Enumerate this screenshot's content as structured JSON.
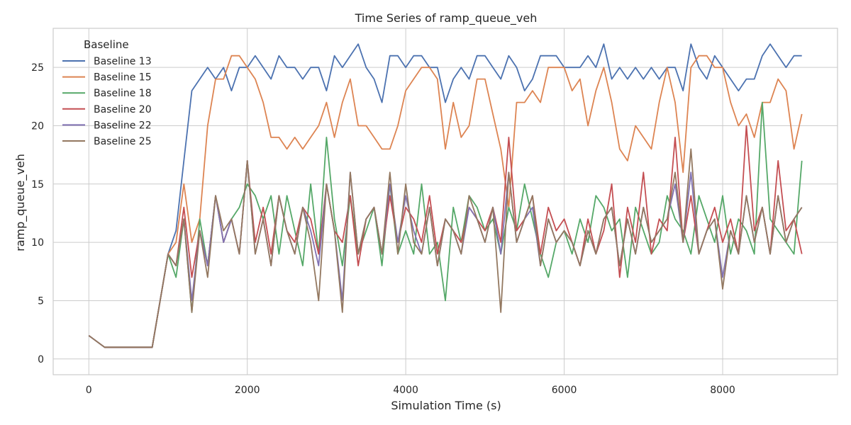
{
  "chart_data": {
    "type": "line",
    "title": "Time Series of ramp_queue_veh",
    "xlabel": "Simulation Time (s)",
    "ylabel": "ramp_queue_veh",
    "xlim": [
      -450,
      9450
    ],
    "ylim": [
      -1.35,
      28.35
    ],
    "xticks": [
      0,
      2000,
      4000,
      6000,
      8000
    ],
    "yticks": [
      0,
      5,
      10,
      15,
      20,
      25
    ],
    "grid": true,
    "legend": {
      "title": "Baseline",
      "position": "top-left"
    },
    "series": [
      {
        "name": "Baseline 13",
        "color": "#4c72b0",
        "x": [
          0,
          200,
          400,
          600,
          800,
          1000,
          1100,
          1200,
          1300,
          1400,
          1500,
          1600,
          1700,
          1800,
          1900,
          2000,
          2100,
          2200,
          2300,
          2400,
          2500,
          2600,
          2700,
          2800,
          2900,
          3000,
          3100,
          3200,
          3300,
          3400,
          3500,
          3600,
          3700,
          3800,
          3900,
          4000,
          4100,
          4200,
          4300,
          4400,
          4500,
          4600,
          4700,
          4800,
          4900,
          5000,
          5100,
          5200,
          5300,
          5400,
          5500,
          5600,
          5700,
          5800,
          5900,
          6000,
          6100,
          6200,
          6300,
          6400,
          6500,
          6600,
          6700,
          6800,
          6900,
          7000,
          7100,
          7200,
          7300,
          7400,
          7500,
          7600,
          7700,
          7800,
          7900,
          8000,
          8100,
          8200,
          8300,
          8400,
          8500,
          8600,
          8700,
          8800,
          8900,
          9000
        ],
        "y": [
          2,
          1,
          1,
          1,
          1,
          9,
          11,
          17,
          23,
          24,
          25,
          24,
          25,
          23,
          25,
          25,
          26,
          25,
          24,
          26,
          25,
          25,
          24,
          25,
          25,
          23,
          26,
          25,
          26,
          27,
          25,
          24,
          22,
          26,
          26,
          25,
          26,
          26,
          25,
          25,
          22,
          24,
          25,
          24,
          26,
          26,
          25,
          24,
          26,
          25,
          23,
          24,
          26,
          26,
          26,
          25,
          25,
          25,
          26,
          25,
          27,
          24,
          25,
          24,
          25,
          24,
          25,
          24,
          25,
          25,
          23,
          27,
          25,
          24,
          26,
          25,
          24,
          23,
          24,
          24,
          26,
          27,
          26,
          25,
          26,
          26
        ]
      },
      {
        "name": "Baseline 15",
        "color": "#dd8452",
        "x": [
          0,
          200,
          400,
          600,
          800,
          1000,
          1100,
          1200,
          1300,
          1400,
          1500,
          1600,
          1700,
          1800,
          1900,
          2000,
          2100,
          2200,
          2300,
          2400,
          2500,
          2600,
          2700,
          2800,
          2900,
          3000,
          3100,
          3200,
          3300,
          3400,
          3500,
          3600,
          3700,
          3800,
          3900,
          4000,
          4100,
          4200,
          4300,
          4400,
          4500,
          4600,
          4700,
          4800,
          4900,
          5000,
          5100,
          5200,
          5300,
          5400,
          5500,
          5600,
          5700,
          5800,
          5900,
          6000,
          6100,
          6200,
          6300,
          6400,
          6500,
          6600,
          6700,
          6800,
          6900,
          7000,
          7100,
          7200,
          7300,
          7400,
          7500,
          7600,
          7700,
          7800,
          7900,
          8000,
          8100,
          8200,
          8300,
          8400,
          8500,
          8600,
          8700,
          8800,
          8900,
          9000
        ],
        "y": [
          2,
          1,
          1,
          1,
          1,
          9,
          10,
          15,
          10,
          12,
          20,
          24,
          24,
          26,
          26,
          25,
          24,
          22,
          19,
          19,
          18,
          19,
          18,
          19,
          20,
          22,
          19,
          22,
          24,
          20,
          20,
          19,
          18,
          18,
          20,
          23,
          24,
          25,
          25,
          24,
          18,
          22,
          19,
          20,
          24,
          24,
          21,
          18,
          13,
          22,
          22,
          23,
          22,
          25,
          25,
          25,
          23,
          24,
          20,
          23,
          25,
          22,
          18,
          17,
          20,
          19,
          18,
          22,
          25,
          22,
          16,
          25,
          26,
          26,
          25,
          25,
          22,
          20,
          21,
          19,
          22,
          22,
          24,
          23,
          18,
          21
        ]
      },
      {
        "name": "Baseline 18",
        "color": "#55a868",
        "x": [
          0,
          200,
          400,
          600,
          800,
          1000,
          1100,
          1200,
          1300,
          1400,
          1500,
          1600,
          1700,
          1800,
          1900,
          2000,
          2100,
          2200,
          2300,
          2400,
          2500,
          2600,
          2700,
          2800,
          2900,
          3000,
          3100,
          3200,
          3300,
          3400,
          3500,
          3600,
          3700,
          3800,
          3900,
          4000,
          4100,
          4200,
          4300,
          4400,
          4500,
          4600,
          4700,
          4800,
          4900,
          5000,
          5100,
          5200,
          5300,
          5400,
          5500,
          5600,
          5700,
          5800,
          5900,
          6000,
          6100,
          6200,
          6300,
          6400,
          6500,
          6600,
          6700,
          6800,
          6900,
          7000,
          7100,
          7200,
          7300,
          7400,
          7500,
          7600,
          7700,
          7800,
          7900,
          8000,
          8100,
          8200,
          8300,
          8400,
          8500,
          8600,
          8700,
          8800,
          8900,
          9000
        ],
        "y": [
          2,
          1,
          1,
          1,
          1,
          9,
          7,
          12,
          4,
          12,
          8,
          14,
          10,
          12,
          13,
          15,
          14,
          12,
          14,
          9,
          14,
          11,
          8,
          15,
          9,
          19,
          12,
          8,
          14,
          9,
          11,
          13,
          8,
          15,
          9,
          11,
          9,
          15,
          9,
          10,
          5,
          13,
          10,
          14,
          13,
          11,
          12,
          9,
          13,
          11,
          15,
          12,
          9,
          7,
          10,
          11,
          9,
          12,
          10,
          14,
          13,
          11,
          12,
          7,
          13,
          11,
          9,
          10,
          14,
          12,
          11,
          9,
          14,
          12,
          10,
          14,
          9,
          12,
          11,
          9,
          22,
          12,
          11,
          10,
          9,
          17
        ]
      },
      {
        "name": "Baseline 20",
        "color": "#c44e52",
        "x": [
          0,
          200,
          400,
          600,
          800,
          1000,
          1100,
          1200,
          1300,
          1400,
          1500,
          1600,
          1700,
          1800,
          1900,
          2000,
          2100,
          2200,
          2300,
          2400,
          2500,
          2600,
          2700,
          2800,
          2900,
          3000,
          3100,
          3200,
          3300,
          3400,
          3500,
          3600,
          3700,
          3800,
          3900,
          4000,
          4100,
          4200,
          4300,
          4400,
          4500,
          4600,
          4700,
          4800,
          4900,
          5000,
          5100,
          5200,
          5300,
          5400,
          5500,
          5600,
          5700,
          5800,
          5900,
          6000,
          6100,
          6200,
          6300,
          6400,
          6500,
          6600,
          6700,
          6800,
          6900,
          7000,
          7100,
          7200,
          7300,
          7400,
          7500,
          7600,
          7700,
          7800,
          7900,
          8000,
          8100,
          8200,
          8300,
          8400,
          8500,
          8600,
          8700,
          8800,
          8900,
          9000
        ],
        "y": [
          2,
          1,
          1,
          1,
          1,
          9,
          8,
          13,
          7,
          11,
          8,
          14,
          10,
          12,
          9,
          17,
          10,
          13,
          9,
          14,
          11,
          10,
          13,
          12,
          9,
          15,
          11,
          10,
          14,
          8,
          12,
          13,
          9,
          14,
          10,
          13,
          12,
          10,
          14,
          9,
          12,
          11,
          10,
          13,
          12,
          11,
          13,
          10,
          19,
          11,
          12,
          14,
          9,
          13,
          11,
          12,
          10,
          8,
          12,
          9,
          11,
          15,
          7,
          13,
          10,
          16,
          9,
          12,
          11,
          19,
          10,
          14,
          9,
          11,
          13,
          10,
          12,
          9,
          20,
          11,
          13,
          9,
          17,
          11,
          12,
          9
        ]
      },
      {
        "name": "Baseline 22",
        "color": "#8172b3",
        "x": [
          0,
          200,
          400,
          600,
          800,
          1000,
          1100,
          1200,
          1300,
          1400,
          1500,
          1600,
          1700,
          1800,
          1900,
          2000,
          2100,
          2200,
          2300,
          2400,
          2500,
          2600,
          2700,
          2800,
          2900,
          3000,
          3100,
          3200,
          3300,
          3400,
          3500,
          3600,
          3700,
          3800,
          3900,
          4000,
          4100,
          4200,
          4300,
          4400,
          4500,
          4600,
          4700,
          4800,
          4900,
          5000,
          5100,
          5200,
          5300,
          5400,
          5500,
          5600,
          5700,
          5800,
          5900,
          6000,
          6100,
          6200,
          6300,
          6400,
          6500,
          6600,
          6700,
          6800,
          6900,
          7000,
          7100,
          7200,
          7300,
          7400,
          7500,
          7600,
          7700,
          7800,
          7900,
          8000,
          8100,
          8200,
          8300,
          8400,
          8500,
          8600,
          8700,
          8800,
          8900,
          9000
        ],
        "y": [
          2,
          1,
          1,
          1,
          1,
          9,
          8,
          12,
          5,
          11,
          8,
          14,
          10,
          12,
          9,
          17,
          9,
          12,
          8,
          14,
          11,
          9,
          13,
          11,
          8,
          15,
          11,
          5,
          16,
          9,
          12,
          13,
          9,
          15,
          10,
          14,
          11,
          9,
          13,
          8,
          12,
          11,
          9,
          13,
          12,
          10,
          13,
          9,
          16,
          10,
          12,
          13,
          8,
          12,
          10,
          11,
          10,
          8,
          11,
          9,
          12,
          13,
          8,
          12,
          9,
          13,
          10,
          11,
          12,
          15,
          10,
          16,
          9,
          11,
          12,
          7,
          11,
          9,
          14,
          10,
          13,
          9,
          14,
          10,
          12,
          13
        ]
      },
      {
        "name": "Baseline 25",
        "color": "#937860",
        "x": [
          0,
          200,
          400,
          600,
          800,
          1000,
          1100,
          1200,
          1300,
          1400,
          1500,
          1600,
          1700,
          1800,
          1900,
          2000,
          2100,
          2200,
          2300,
          2400,
          2500,
          2600,
          2700,
          2800,
          2900,
          3000,
          3100,
          3200,
          3300,
          3400,
          3500,
          3600,
          3700,
          3800,
          3900,
          4000,
          4100,
          4200,
          4300,
          4400,
          4500,
          4600,
          4700,
          4800,
          4900,
          5000,
          5100,
          5200,
          5300,
          5400,
          5500,
          5600,
          5700,
          5800,
          5900,
          6000,
          6100,
          6200,
          6300,
          6400,
          6500,
          6600,
          6700,
          6800,
          6900,
          7000,
          7100,
          7200,
          7300,
          7400,
          7500,
          7600,
          7700,
          7800,
          7900,
          8000,
          8100,
          8200,
          8300,
          8400,
          8500,
          8600,
          8700,
          8800,
          8900,
          9000
        ],
        "y": [
          2,
          1,
          1,
          1,
          1,
          9,
          8,
          12,
          4,
          11,
          7,
          14,
          11,
          12,
          9,
          17,
          9,
          12,
          8,
          14,
          11,
          9,
          13,
          10,
          5,
          15,
          11,
          4,
          16,
          9,
          12,
          13,
          9,
          16,
          9,
          15,
          10,
          9,
          13,
          8,
          12,
          11,
          9,
          14,
          12,
          10,
          13,
          4,
          16,
          10,
          12,
          14,
          8,
          12,
          10,
          11,
          10,
          8,
          11,
          9,
          12,
          13,
          8,
          12,
          9,
          13,
          10,
          11,
          12,
          16,
          10,
          18,
          9,
          11,
          12,
          6,
          11,
          9,
          14,
          10,
          13,
          9,
          14,
          10,
          12,
          13
        ]
      }
    ]
  }
}
